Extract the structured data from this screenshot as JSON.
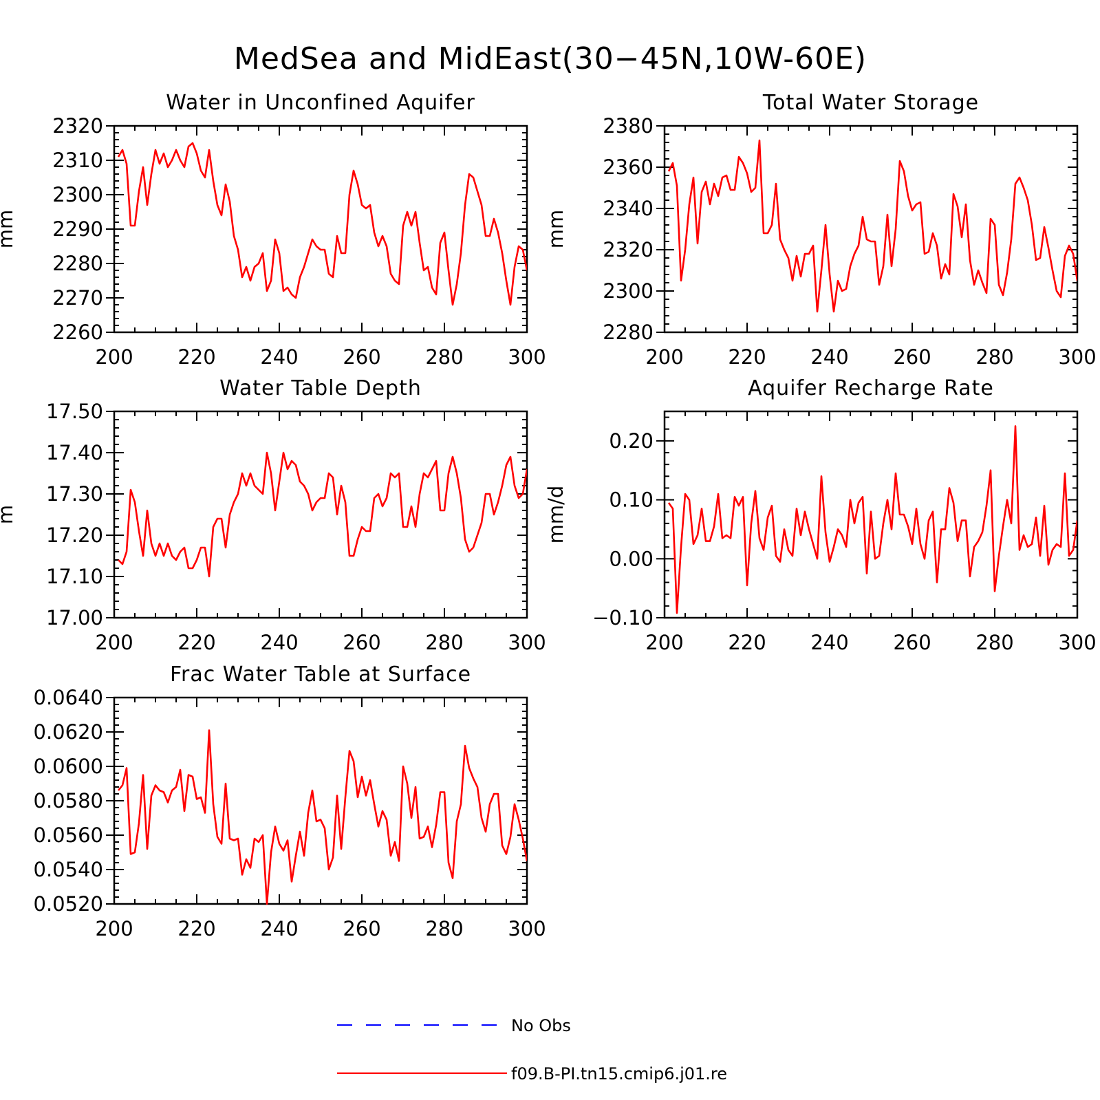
{
  "title": "MedSea and MidEast(30-45N,10W-60E)",
  "legend": [
    {
      "label": "No Obs",
      "color": "#0000ff",
      "dash": true
    },
    {
      "label": "f09.B-PI.tn15.cmip6.j01.re",
      "color": "#ff0000",
      "dash": false
    }
  ],
  "chart_data": [
    {
      "type": "line",
      "title": "Water in Unconfined Aquifer",
      "ylabel": "mm",
      "xlim": [
        200,
        300
      ],
      "ylim": [
        2260,
        2320
      ],
      "xticks": [
        200,
        220,
        240,
        260,
        280,
        300
      ],
      "yticks": [
        2260,
        2270,
        2280,
        2290,
        2300,
        2310,
        2320
      ],
      "ytick_labels": [
        "2260",
        "2270",
        "2280",
        "2290",
        "2300",
        "2310",
        "2320"
      ],
      "x_start": 201,
      "series": [
        {
          "values": [
            2311,
            2313,
            2309,
            2291,
            2291,
            2301,
            2308,
            2297,
            2306,
            2313,
            2309,
            2312,
            2308,
            2310,
            2313,
            2310,
            2308,
            2314,
            2315,
            2312,
            2307,
            2305,
            2313,
            2304,
            2297,
            2294,
            2303,
            2298,
            2288,
            2284,
            2276,
            2279,
            2275,
            2279,
            2280,
            2283,
            2272,
            2275,
            2287,
            2283,
            2272,
            2273,
            2271,
            2270,
            2276,
            2279,
            2283,
            2287,
            2285,
            2284,
            2284,
            2277,
            2276,
            2288,
            2283,
            2283,
            2300,
            2307,
            2303,
            2297,
            2296,
            2297,
            2289,
            2285,
            2288,
            2285,
            2277,
            2275,
            2274,
            2291,
            2295,
            2291,
            2295,
            2286,
            2278,
            2279,
            2273,
            2271,
            2286,
            2289,
            2278,
            2268,
            2274,
            2283,
            2297,
            2306,
            2305,
            2301,
            2297,
            2288,
            2288,
            2293,
            2289,
            2283,
            2275,
            2268,
            2279,
            2285,
            2284,
            2278
          ]
        }
      ]
    },
    {
      "type": "line",
      "title": "Total Water Storage",
      "ylabel": "mm",
      "xlim": [
        200,
        300
      ],
      "ylim": [
        2280,
        2380
      ],
      "xticks": [
        200,
        220,
        240,
        260,
        280,
        300
      ],
      "yticks": [
        2280,
        2300,
        2320,
        2340,
        2360,
        2380
      ],
      "ytick_labels": [
        "2280",
        "2300",
        "2320",
        "2340",
        "2360",
        "2380"
      ],
      "x_start": 201,
      "series": [
        {
          "values": [
            2358,
            2362,
            2351,
            2305,
            2320,
            2342,
            2355,
            2323,
            2348,
            2353,
            2342,
            2352,
            2346,
            2355,
            2356,
            2349,
            2349,
            2365,
            2362,
            2357,
            2348,
            2350,
            2373,
            2328,
            2328,
            2332,
            2352,
            2325,
            2320,
            2316,
            2305,
            2317,
            2307,
            2318,
            2318,
            2322,
            2290,
            2310,
            2332,
            2308,
            2290,
            2305,
            2300,
            2301,
            2312,
            2318,
            2322,
            2336,
            2325,
            2324,
            2324,
            2303,
            2312,
            2337,
            2312,
            2330,
            2363,
            2358,
            2346,
            2339,
            2342,
            2343,
            2318,
            2319,
            2328,
            2322,
            2306,
            2313,
            2308,
            2347,
            2341,
            2326,
            2342,
            2315,
            2303,
            2310,
            2304,
            2299,
            2335,
            2332,
            2303,
            2298,
            2309,
            2325,
            2352,
            2355,
            2350,
            2344,
            2332,
            2315,
            2316,
            2331,
            2321,
            2310,
            2300,
            2297,
            2317,
            2322,
            2318,
            2305
          ]
        }
      ]
    },
    {
      "type": "line",
      "title": "Water Table Depth",
      "ylabel": "m",
      "xlim": [
        200,
        300
      ],
      "ylim": [
        17.0,
        17.5
      ],
      "xticks": [
        200,
        220,
        240,
        260,
        280,
        300
      ],
      "yticks": [
        17.0,
        17.1,
        17.2,
        17.3,
        17.4,
        17.5
      ],
      "ytick_labels": [
        "17.00",
        "17.10",
        "17.20",
        "17.30",
        "17.40",
        "17.50"
      ],
      "x_start": 201,
      "series": [
        {
          "values": [
            17.14,
            17.13,
            17.16,
            17.31,
            17.28,
            17.21,
            17.15,
            17.26,
            17.18,
            17.15,
            17.18,
            17.15,
            17.18,
            17.15,
            17.14,
            17.16,
            17.17,
            17.12,
            17.12,
            17.14,
            17.17,
            17.17,
            17.1,
            17.22,
            17.24,
            17.24,
            17.17,
            17.25,
            17.28,
            17.3,
            17.35,
            17.32,
            17.35,
            17.32,
            17.31,
            17.3,
            17.4,
            17.35,
            17.26,
            17.33,
            17.4,
            17.36,
            17.38,
            17.37,
            17.33,
            17.32,
            17.3,
            17.26,
            17.28,
            17.29,
            17.29,
            17.35,
            17.34,
            17.25,
            17.32,
            17.28,
            17.15,
            17.15,
            17.19,
            17.22,
            17.21,
            17.21,
            17.29,
            17.3,
            17.27,
            17.29,
            17.35,
            17.34,
            17.35,
            17.22,
            17.22,
            17.27,
            17.22,
            17.3,
            17.35,
            17.34,
            17.36,
            17.38,
            17.26,
            17.26,
            17.35,
            17.39,
            17.35,
            17.29,
            17.19,
            17.16,
            17.17,
            17.2,
            17.23,
            17.3,
            17.3,
            17.25,
            17.28,
            17.32,
            17.37,
            17.39,
            17.32,
            17.29,
            17.3,
            17.36
          ]
        }
      ]
    },
    {
      "type": "line",
      "title": "Aquifer Recharge Rate",
      "ylabel": "mm/d",
      "xlim": [
        200,
        300
      ],
      "ylim": [
        -0.1,
        0.25
      ],
      "xticks": [
        200,
        220,
        240,
        260,
        280,
        300
      ],
      "yticks": [
        -0.1,
        0.0,
        0.1,
        0.2
      ],
      "ytick_labels": [
        "-0.10",
        "0.00",
        "0.10",
        "0.20"
      ],
      "x_start": 201,
      "series": [
        {
          "values": [
            0.095,
            0.085,
            -0.092,
            0.02,
            0.11,
            0.1,
            0.025,
            0.04,
            0.085,
            0.03,
            0.03,
            0.055,
            0.11,
            0.035,
            0.04,
            0.035,
            0.105,
            0.09,
            0.105,
            -0.045,
            0.06,
            0.115,
            0.035,
            0.015,
            0.07,
            0.09,
            0.005,
            -0.005,
            0.05,
            0.015,
            0.005,
            0.085,
            0.04,
            0.08,
            0.05,
            0.025,
            0.0,
            0.14,
            0.045,
            -0.005,
            0.02,
            0.05,
            0.04,
            0.02,
            0.1,
            0.06,
            0.095,
            0.105,
            -0.025,
            0.08,
            0.0,
            0.005,
            0.06,
            0.1,
            0.05,
            0.145,
            0.075,
            0.075,
            0.055,
            0.025,
            0.085,
            0.025,
            0.0,
            0.065,
            0.08,
            -0.04,
            0.05,
            0.05,
            0.12,
            0.095,
            0.03,
            0.065,
            0.065,
            -0.03,
            0.02,
            0.03,
            0.045,
            0.09,
            0.15,
            -0.055,
            0.005,
            0.055,
            0.1,
            0.06,
            0.225,
            0.015,
            0.04,
            0.02,
            0.025,
            0.07,
            0.005,
            0.09,
            -0.01,
            0.015,
            0.025,
            0.02,
            0.145,
            0.005,
            0.015,
            0.065
          ]
        }
      ]
    },
    {
      "type": "line",
      "title": "Frac Water Table at Surface",
      "ylabel": "",
      "xlim": [
        200,
        300
      ],
      "ylim": [
        0.052,
        0.064
      ],
      "xticks": [
        200,
        220,
        240,
        260,
        280,
        300
      ],
      "yticks": [
        0.052,
        0.054,
        0.056,
        0.058,
        0.06,
        0.062,
        0.064
      ],
      "ytick_labels": [
        "0.0520",
        "0.0540",
        "0.0560",
        "0.0580",
        "0.0600",
        "0.0620",
        "0.0640"
      ],
      "x_start": 201,
      "series": [
        {
          "values": [
            0.0586,
            0.0589,
            0.0599,
            0.0549,
            0.055,
            0.0567,
            0.0595,
            0.0552,
            0.0583,
            0.0589,
            0.0586,
            0.0585,
            0.0579,
            0.0586,
            0.0588,
            0.0598,
            0.0574,
            0.0595,
            0.0594,
            0.0581,
            0.0582,
            0.0573,
            0.0621,
            0.0578,
            0.0559,
            0.0555,
            0.059,
            0.0558,
            0.0557,
            0.0558,
            0.0537,
            0.0546,
            0.0541,
            0.0558,
            0.0556,
            0.056,
            0.052,
            0.055,
            0.0565,
            0.0555,
            0.0551,
            0.0557,
            0.0533,
            0.0548,
            0.0562,
            0.0548,
            0.0573,
            0.0586,
            0.0568,
            0.0569,
            0.0564,
            0.054,
            0.0547,
            0.0583,
            0.0552,
            0.0582,
            0.0609,
            0.0603,
            0.0582,
            0.0594,
            0.0583,
            0.0592,
            0.0578,
            0.0565,
            0.0574,
            0.0569,
            0.0548,
            0.0556,
            0.0545,
            0.06,
            0.059,
            0.057,
            0.0588,
            0.0558,
            0.0559,
            0.0565,
            0.0553,
            0.0566,
            0.0585,
            0.0585,
            0.0544,
            0.0535,
            0.0568,
            0.0578,
            0.0612,
            0.0599,
            0.0593,
            0.0588,
            0.057,
            0.0562,
            0.0578,
            0.0584,
            0.0584,
            0.0554,
            0.0549,
            0.0559,
            0.0578,
            0.0569,
            0.0558,
            0.0545
          ]
        }
      ]
    }
  ]
}
